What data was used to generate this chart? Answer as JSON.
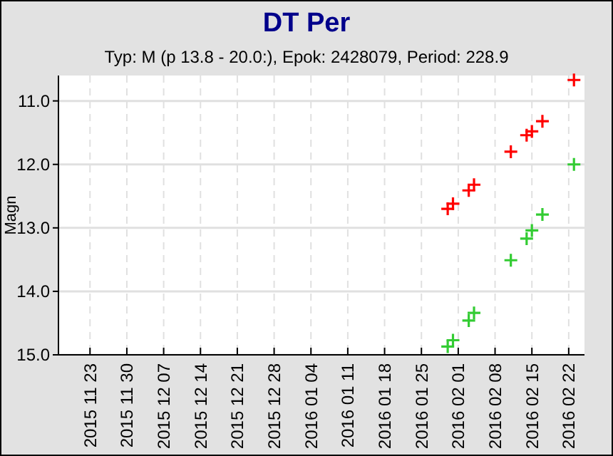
{
  "chart_data": {
    "type": "scatter",
    "title": "DT Per",
    "subtitle": "Typ: M (p 13.8 - 20.0:), Epok: 2428079, Period: 228.9",
    "ylabel": "Magn",
    "x": [
      "2016-01-30",
      "2016-01-31",
      "2016-02-03",
      "2016-02-04",
      "2016-02-11",
      "2016-02-14",
      "2016-02-15",
      "2016-02-17",
      "2016-02-23"
    ],
    "series": [
      {
        "color": "#ff0000",
        "values": [
          12.7,
          12.62,
          12.41,
          12.32,
          11.8,
          11.54,
          11.48,
          11.32,
          10.67
        ]
      },
      {
        "color": "#33cc33",
        "values": [
          14.87,
          14.77,
          14.46,
          14.34,
          13.51,
          13.17,
          13.04,
          12.79,
          12.0
        ]
      }
    ],
    "xlim": [
      "2015-11-17",
      "2016-02-25"
    ],
    "xticks": [
      {
        "value": "2015-11-23",
        "label": "2015 11 23"
      },
      {
        "value": "2015-11-30",
        "label": "2015 11 30"
      },
      {
        "value": "2015-12-07",
        "label": "2015 12 07"
      },
      {
        "value": "2015-12-14",
        "label": "2015 12 14"
      },
      {
        "value": "2015-12-21",
        "label": "2015 12 21"
      },
      {
        "value": "2015-12-28",
        "label": "2015 12 28"
      },
      {
        "value": "2016-01-04",
        "label": "2016 01 04"
      },
      {
        "value": "2016-01-11",
        "label": "2016 01 11"
      },
      {
        "value": "2016-01-18",
        "label": "2016 01 18"
      },
      {
        "value": "2016-01-25",
        "label": "2016 01 25"
      },
      {
        "value": "2016-02-01",
        "label": "2016 02 01"
      },
      {
        "value": "2016-02-08",
        "label": "2016 02 08"
      },
      {
        "value": "2016-02-15",
        "label": "2016 02 15"
      },
      {
        "value": "2016-02-22",
        "label": "2016 02 22"
      }
    ],
    "ylim": [
      15.0,
      10.6
    ],
    "yticks": [
      {
        "value": 11,
        "label": "11.0"
      },
      {
        "value": 12,
        "label": "12.0"
      },
      {
        "value": 13,
        "label": "13.0"
      },
      {
        "value": 14,
        "label": "14.0"
      },
      {
        "value": 15,
        "label": "15.0"
      }
    ],
    "grid": true,
    "marker": "cross"
  }
}
